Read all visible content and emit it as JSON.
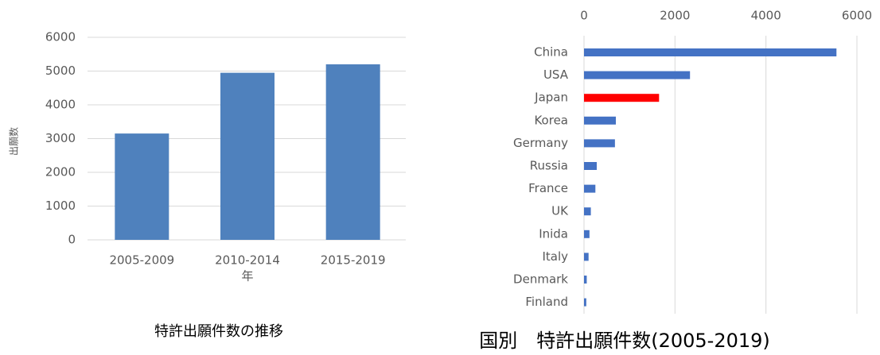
{
  "chart_data": [
    {
      "type": "bar",
      "title": "特許出願件数の推移",
      "x_label": "年",
      "y_label": "出願数",
      "categories": [
        "2005-2009",
        "2010-2014",
        "2015-2019"
      ],
      "values": [
        3150,
        4950,
        5200
      ],
      "color": "#4f81bd",
      "ylim": [
        0,
        6000
      ],
      "yticks": [
        0,
        1000,
        2000,
        3000,
        4000,
        5000,
        6000
      ],
      "grid": true
    },
    {
      "type": "barh",
      "title": "国別　特許出願件数(2005-2019)",
      "categories": [
        "China",
        "USA",
        "Japan",
        "Korea",
        "Germany",
        "Russia",
        "France",
        "UK",
        "Inida",
        "Italy",
        "Denmark",
        "Finland"
      ],
      "values": [
        5550,
        2330,
        1650,
        700,
        680,
        280,
        250,
        150,
        120,
        100,
        60,
        50
      ],
      "colors": [
        "#4472c4",
        "#4472c4",
        "#ff0000",
        "#4472c4",
        "#4472c4",
        "#4472c4",
        "#4472c4",
        "#4472c4",
        "#4472c4",
        "#4472c4",
        "#4472c4",
        "#4472c4"
      ],
      "xlim": [
        0,
        6000
      ],
      "xticks": [
        0,
        2000,
        4000,
        6000
      ],
      "grid": true
    }
  ]
}
